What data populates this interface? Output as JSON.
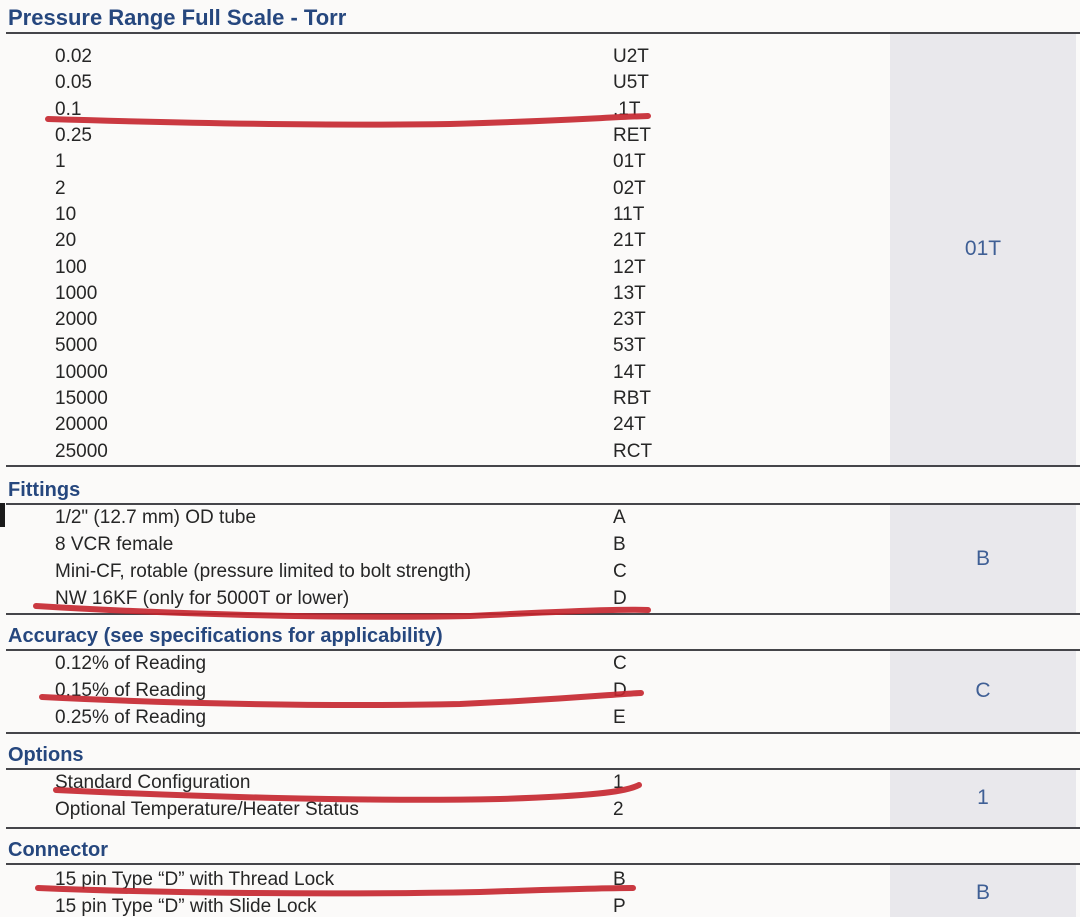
{
  "document": {
    "kind": "ordering code selection sheet (photographed) with hand-drawn red underline marks",
    "colors": {
      "heading_blue": "#26477e",
      "body_text": "#262626",
      "rule_line": "#45454a",
      "selection_box_bg": "#e9e8ec",
      "selection_box_text": "#3f5f95",
      "marker_red": "#c4242c",
      "page_bg": "#fbfaf9"
    }
  },
  "sections": [
    {
      "id": "pressure-range",
      "title": "Pressure Range Full Scale - Torr",
      "selected_code": "01T",
      "rows": [
        {
          "label": "0.02",
          "code": "U2T"
        },
        {
          "label": "0.05",
          "code": "U5T"
        },
        {
          "label": "0.1",
          "code": ".1T"
        },
        {
          "label": "0.25",
          "code": "RET"
        },
        {
          "label": "1",
          "code": "01T"
        },
        {
          "label": "2",
          "code": "02T"
        },
        {
          "label": "10",
          "code": "11T"
        },
        {
          "label": "20",
          "code": "21T"
        },
        {
          "label": "100",
          "code": "12T"
        },
        {
          "label": "1000",
          "code": "13T"
        },
        {
          "label": "2000",
          "code": "23T"
        },
        {
          "label": "5000",
          "code": "53T"
        },
        {
          "label": "10000",
          "code": "14T"
        },
        {
          "label": "15000",
          "code": "RBT"
        },
        {
          "label": "20000",
          "code": "24T"
        },
        {
          "label": "25000",
          "code": "RCT"
        }
      ]
    },
    {
      "id": "fittings",
      "title": "Fittings",
      "selected_code": "B",
      "rows": [
        {
          "label": "1/2\" (12.7 mm) OD tube",
          "code": "A"
        },
        {
          "label": "8 VCR female",
          "code": "B"
        },
        {
          "label": "Mini-CF, rotable (pressure limited to bolt strength)",
          "code": "C"
        },
        {
          "label": "NW 16KF (only for 5000T or lower)",
          "code": "D"
        }
      ]
    },
    {
      "id": "accuracy",
      "title": "Accuracy (see specifications for applicability)",
      "selected_code": "C",
      "rows": [
        {
          "label": "0.12% of Reading",
          "code": "C"
        },
        {
          "label": "0.15% of Reading",
          "code": "D"
        },
        {
          "label": "0.25% of Reading",
          "code": "E"
        }
      ]
    },
    {
      "id": "options",
      "title": "Options",
      "selected_code": "1",
      "rows": [
        {
          "label": "Standard Configuration",
          "code": "1"
        },
        {
          "label": "Optional Temperature/Heater Status",
          "code": "2"
        }
      ]
    },
    {
      "id": "connector",
      "title": "Connector",
      "selected_code": "B",
      "rows": [
        {
          "label": "15 pin Type “D” with Thread Lock",
          "code": "B"
        },
        {
          "label": "15 pin Type “D” with Slide Lock",
          "code": "P"
        }
      ]
    }
  ],
  "annotations": {
    "marker_color": "#c4242c",
    "red_underlined_rows": [
      "0.1 → .1T",
      "NW 16KF (only for 5000T or lower) → D",
      "0.15% of Reading → D",
      "Standard Configuration → 1",
      "15 pin Type “D” with Thread Lock → B"
    ]
  }
}
